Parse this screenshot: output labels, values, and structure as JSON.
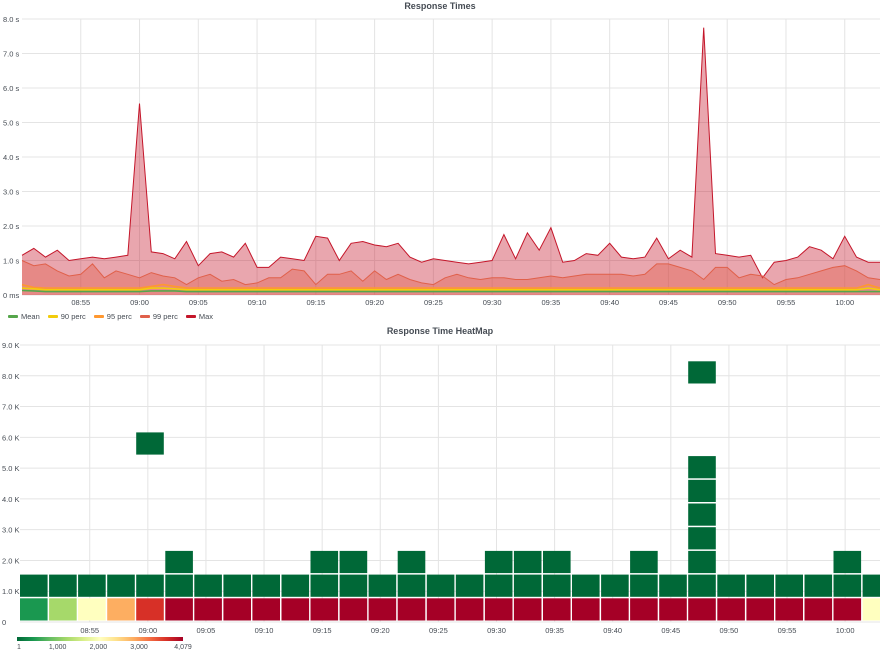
{
  "chart_data": [
    {
      "type": "area",
      "title": "Response Times",
      "y_unit": "s",
      "yticks": [
        "0 ms",
        "1.0 s",
        "2.0 s",
        "3.0 s",
        "4.0 s",
        "5.0 s",
        "6.0 s",
        "7.0 s",
        "8.0 s"
      ],
      "ylim": [
        0,
        8
      ],
      "xlim": [
        "08:50",
        "10:03"
      ],
      "xticks": [
        "08:55",
        "09:00",
        "09:05",
        "09:10",
        "09:15",
        "09:20",
        "09:25",
        "09:30",
        "09:35",
        "09:40",
        "09:45",
        "09:50",
        "09:55",
        "10:00"
      ],
      "x": [
        "08:50",
        "08:51",
        "08:52",
        "08:53",
        "08:54",
        "08:55",
        "08:56",
        "08:57",
        "08:58",
        "08:59",
        "09:00",
        "09:01",
        "09:02",
        "09:03",
        "09:04",
        "09:05",
        "09:06",
        "09:07",
        "09:08",
        "09:09",
        "09:10",
        "09:11",
        "09:12",
        "09:13",
        "09:14",
        "09:15",
        "09:16",
        "09:17",
        "09:18",
        "09:19",
        "09:20",
        "09:21",
        "09:22",
        "09:23",
        "09:24",
        "09:25",
        "09:26",
        "09:27",
        "09:28",
        "09:29",
        "09:30",
        "09:31",
        "09:32",
        "09:33",
        "09:34",
        "09:35",
        "09:36",
        "09:37",
        "09:38",
        "09:39",
        "09:40",
        "09:41",
        "09:42",
        "09:43",
        "09:44",
        "09:45",
        "09:46",
        "09:47",
        "09:48",
        "09:49",
        "09:50",
        "09:51",
        "09:52",
        "09:53",
        "09:54",
        "09:55",
        "09:56",
        "09:57",
        "09:58",
        "09:59",
        "10:00",
        "10:01",
        "10:02",
        "10:03"
      ],
      "series": [
        {
          "name": "Mean",
          "color": "#56a64b",
          "fill": false,
          "values": [
            0.13,
            0.12,
            0.1,
            0.1,
            0.1,
            0.1,
            0.1,
            0.1,
            0.1,
            0.1,
            0.1,
            0.12,
            0.12,
            0.12,
            0.1,
            0.1,
            0.1,
            0.1,
            0.1,
            0.1,
            0.1,
            0.1,
            0.1,
            0.1,
            0.1,
            0.1,
            0.1,
            0.1,
            0.1,
            0.1,
            0.1,
            0.1,
            0.1,
            0.1,
            0.1,
            0.1,
            0.1,
            0.1,
            0.1,
            0.1,
            0.1,
            0.1,
            0.1,
            0.1,
            0.1,
            0.1,
            0.1,
            0.1,
            0.1,
            0.1,
            0.1,
            0.1,
            0.1,
            0.1,
            0.1,
            0.1,
            0.1,
            0.1,
            0.1,
            0.1,
            0.1,
            0.1,
            0.1,
            0.1,
            0.1,
            0.1,
            0.1,
            0.1,
            0.1,
            0.1,
            0.1,
            0.1,
            0.1,
            0.1
          ]
        },
        {
          "name": "90 perc",
          "color": "#f2cc0c",
          "fill": false,
          "values": [
            0.2,
            0.18,
            0.15,
            0.15,
            0.15,
            0.15,
            0.15,
            0.15,
            0.15,
            0.15,
            0.15,
            0.2,
            0.2,
            0.18,
            0.15,
            0.15,
            0.15,
            0.15,
            0.15,
            0.15,
            0.15,
            0.15,
            0.15,
            0.15,
            0.15,
            0.15,
            0.15,
            0.15,
            0.15,
            0.15,
            0.15,
            0.15,
            0.15,
            0.15,
            0.15,
            0.15,
            0.15,
            0.15,
            0.15,
            0.15,
            0.15,
            0.15,
            0.15,
            0.15,
            0.15,
            0.15,
            0.15,
            0.15,
            0.15,
            0.15,
            0.15,
            0.15,
            0.15,
            0.15,
            0.15,
            0.15,
            0.15,
            0.15,
            0.15,
            0.15,
            0.15,
            0.15,
            0.15,
            0.15,
            0.15,
            0.15,
            0.15,
            0.15,
            0.15,
            0.15,
            0.15,
            0.15,
            0.2,
            0.15
          ]
        },
        {
          "name": "95 perc",
          "color": "#ff9830",
          "fill": false,
          "values": [
            0.3,
            0.22,
            0.2,
            0.2,
            0.2,
            0.2,
            0.2,
            0.2,
            0.2,
            0.2,
            0.2,
            0.25,
            0.3,
            0.25,
            0.2,
            0.2,
            0.2,
            0.2,
            0.2,
            0.2,
            0.2,
            0.2,
            0.2,
            0.2,
            0.2,
            0.2,
            0.2,
            0.2,
            0.2,
            0.2,
            0.2,
            0.2,
            0.2,
            0.2,
            0.2,
            0.2,
            0.2,
            0.2,
            0.2,
            0.2,
            0.2,
            0.2,
            0.2,
            0.2,
            0.2,
            0.2,
            0.2,
            0.2,
            0.2,
            0.2,
            0.2,
            0.2,
            0.2,
            0.2,
            0.2,
            0.2,
            0.2,
            0.2,
            0.2,
            0.2,
            0.2,
            0.2,
            0.2,
            0.2,
            0.2,
            0.2,
            0.2,
            0.2,
            0.2,
            0.2,
            0.2,
            0.2,
            0.3,
            0.2
          ]
        },
        {
          "name": "99 perc",
          "color": "#e0604a",
          "fill": true,
          "values": [
            1.0,
            0.85,
            0.9,
            0.7,
            0.55,
            0.6,
            0.9,
            0.5,
            0.7,
            0.6,
            0.5,
            0.65,
            0.55,
            0.5,
            0.3,
            0.5,
            0.6,
            0.4,
            0.45,
            0.3,
            0.35,
            0.5,
            0.5,
            0.75,
            0.7,
            0.3,
            0.6,
            0.6,
            0.7,
            0.4,
            0.7,
            0.45,
            0.6,
            0.45,
            0.35,
            0.3,
            0.5,
            0.6,
            0.5,
            0.45,
            0.5,
            0.5,
            0.45,
            0.45,
            0.5,
            0.55,
            0.5,
            0.55,
            0.6,
            0.6,
            0.6,
            0.6,
            0.55,
            0.6,
            0.9,
            0.9,
            0.8,
            0.7,
            0.45,
            0.8,
            0.8,
            0.5,
            0.6,
            0.55,
            0.3,
            0.45,
            0.5,
            0.6,
            0.7,
            0.8,
            0.85,
            0.7,
            0.5,
            0.45
          ]
        },
        {
          "name": "Max",
          "color": "#c4162a",
          "fill": true,
          "values": [
            1.15,
            1.35,
            1.1,
            1.3,
            1.0,
            1.05,
            1.1,
            1.05,
            1.1,
            1.15,
            5.55,
            1.25,
            1.2,
            1.05,
            1.55,
            0.85,
            1.2,
            1.25,
            1.1,
            1.5,
            0.8,
            0.8,
            1.1,
            1.05,
            1.0,
            1.7,
            1.65,
            1.0,
            1.5,
            1.55,
            1.45,
            1.4,
            1.5,
            1.1,
            0.95,
            1.05,
            1.0,
            0.95,
            0.9,
            0.95,
            1.0,
            1.75,
            1.05,
            1.8,
            1.3,
            1.95,
            0.95,
            1.0,
            1.2,
            1.15,
            1.5,
            1.1,
            1.05,
            1.1,
            1.65,
            1.05,
            1.3,
            1.1,
            7.75,
            1.2,
            1.15,
            1.1,
            1.15,
            0.5,
            0.95,
            1.0,
            1.1,
            1.4,
            1.3,
            1.05,
            1.7,
            1.1,
            0.95,
            0.95
          ]
        }
      ],
      "legend_position": "bottom-left",
      "grid": true
    },
    {
      "type": "heatmap",
      "title": "Response Time HeatMap",
      "yticks": [
        "0",
        "1.0 K",
        "2.0 K",
        "3.0 K",
        "4.0 K",
        "5.0 K",
        "6.0 K",
        "7.0 K",
        "8.0 K",
        "9.0 K"
      ],
      "ylim": [
        0,
        9000
      ],
      "xlim": [
        "08:49",
        "10:03"
      ],
      "xticks": [
        "08:55",
        "09:00",
        "09:05",
        "09:10",
        "09:15",
        "09:20",
        "09:25",
        "09:30",
        "09:35",
        "09:40",
        "09:45",
        "09:50",
        "09:55",
        "10:00"
      ],
      "bucket_minutes": 2.5,
      "bucket_size": 770,
      "color_scale": {
        "min": 1,
        "max": 4079,
        "ticks": [
          "1",
          "1,000",
          "2,000",
          "3,000",
          "4,079"
        ],
        "colors": [
          "#006837",
          "#1a9850",
          "#66bd63",
          "#a6d96a",
          "#d9ef8b",
          "#ffffbf",
          "#fee08b",
          "#fdae61",
          "#f46d43",
          "#d73027",
          "#a50026"
        ]
      },
      "cells": [
        {
          "x": 0,
          "y": 0,
          "count": 250
        },
        {
          "x": 1,
          "y": 0,
          "count": 1250
        },
        {
          "x": 2,
          "y": 0,
          "count": 2150
        },
        {
          "x": 3,
          "y": 0,
          "count": 2900
        },
        {
          "x": 4,
          "y": 0,
          "count": 3700
        },
        {
          "x": 5,
          "y": 0,
          "count": 4079
        },
        {
          "x": 6,
          "y": 0,
          "count": 4079
        },
        {
          "x": 7,
          "y": 0,
          "count": 4079
        },
        {
          "x": 8,
          "y": 0,
          "count": 4079
        },
        {
          "x": 9,
          "y": 0,
          "count": 4079
        },
        {
          "x": 10,
          "y": 0,
          "count": 4079
        },
        {
          "x": 11,
          "y": 0,
          "count": 4079
        },
        {
          "x": 12,
          "y": 0,
          "count": 4079
        },
        {
          "x": 13,
          "y": 0,
          "count": 4079
        },
        {
          "x": 14,
          "y": 0,
          "count": 4079
        },
        {
          "x": 15,
          "y": 0,
          "count": 4079
        },
        {
          "x": 16,
          "y": 0,
          "count": 4079
        },
        {
          "x": 17,
          "y": 0,
          "count": 4079
        },
        {
          "x": 18,
          "y": 0,
          "count": 4079
        },
        {
          "x": 19,
          "y": 0,
          "count": 4079
        },
        {
          "x": 20,
          "y": 0,
          "count": 4079
        },
        {
          "x": 21,
          "y": 0,
          "count": 4079
        },
        {
          "x": 22,
          "y": 0,
          "count": 4079
        },
        {
          "x": 23,
          "y": 0,
          "count": 4079
        },
        {
          "x": 24,
          "y": 0,
          "count": 4079
        },
        {
          "x": 25,
          "y": 0,
          "count": 4079
        },
        {
          "x": 26,
          "y": 0,
          "count": 4079
        },
        {
          "x": 27,
          "y": 0,
          "count": 4079
        },
        {
          "x": 28,
          "y": 0,
          "count": 4079
        },
        {
          "x": 29,
          "y": 0,
          "count": 2000
        },
        {
          "x": 0,
          "y": 1,
          "count": 5
        },
        {
          "x": 1,
          "y": 1,
          "count": 5
        },
        {
          "x": 2,
          "y": 1,
          "count": 5
        },
        {
          "x": 3,
          "y": 1,
          "count": 5
        },
        {
          "x": 4,
          "y": 1,
          "count": 5
        },
        {
          "x": 5,
          "y": 1,
          "count": 5
        },
        {
          "x": 6,
          "y": 1,
          "count": 5
        },
        {
          "x": 7,
          "y": 1,
          "count": 5
        },
        {
          "x": 8,
          "y": 1,
          "count": 5
        },
        {
          "x": 9,
          "y": 1,
          "count": 5
        },
        {
          "x": 10,
          "y": 1,
          "count": 5
        },
        {
          "x": 11,
          "y": 1,
          "count": 5
        },
        {
          "x": 12,
          "y": 1,
          "count": 5
        },
        {
          "x": 13,
          "y": 1,
          "count": 5
        },
        {
          "x": 14,
          "y": 1,
          "count": 5
        },
        {
          "x": 15,
          "y": 1,
          "count": 5
        },
        {
          "x": 16,
          "y": 1,
          "count": 5
        },
        {
          "x": 17,
          "y": 1,
          "count": 5
        },
        {
          "x": 18,
          "y": 1,
          "count": 5
        },
        {
          "x": 19,
          "y": 1,
          "count": 5
        },
        {
          "x": 20,
          "y": 1,
          "count": 5
        },
        {
          "x": 21,
          "y": 1,
          "count": 5
        },
        {
          "x": 22,
          "y": 1,
          "count": 5
        },
        {
          "x": 23,
          "y": 1,
          "count": 5
        },
        {
          "x": 24,
          "y": 1,
          "count": 5
        },
        {
          "x": 25,
          "y": 1,
          "count": 5
        },
        {
          "x": 26,
          "y": 1,
          "count": 5
        },
        {
          "x": 27,
          "y": 1,
          "count": 5
        },
        {
          "x": 28,
          "y": 1,
          "count": 5
        },
        {
          "x": 29,
          "y": 1,
          "count": 5
        },
        {
          "x": 5,
          "y": 2,
          "count": 2
        },
        {
          "x": 10,
          "y": 2,
          "count": 2
        },
        {
          "x": 11,
          "y": 2,
          "count": 2
        },
        {
          "x": 13,
          "y": 2,
          "count": 2
        },
        {
          "x": 16,
          "y": 2,
          "count": 2
        },
        {
          "x": 17,
          "y": 2,
          "count": 2
        },
        {
          "x": 18,
          "y": 2,
          "count": 2
        },
        {
          "x": 21,
          "y": 2,
          "count": 2
        },
        {
          "x": 23,
          "y": 2,
          "count": 2
        },
        {
          "x": 28,
          "y": 2,
          "count": 2
        },
        {
          "x": 23,
          "y": 3,
          "count": 1
        },
        {
          "x": 23,
          "y": 4,
          "count": 1
        },
        {
          "x": 23,
          "y": 5,
          "count": 1
        },
        {
          "x": 23,
          "y": 6,
          "count": 1
        },
        {
          "x": 4,
          "y": 7,
          "count": 1
        },
        {
          "x": 23,
          "y": 10,
          "count": 1
        }
      ]
    }
  ]
}
